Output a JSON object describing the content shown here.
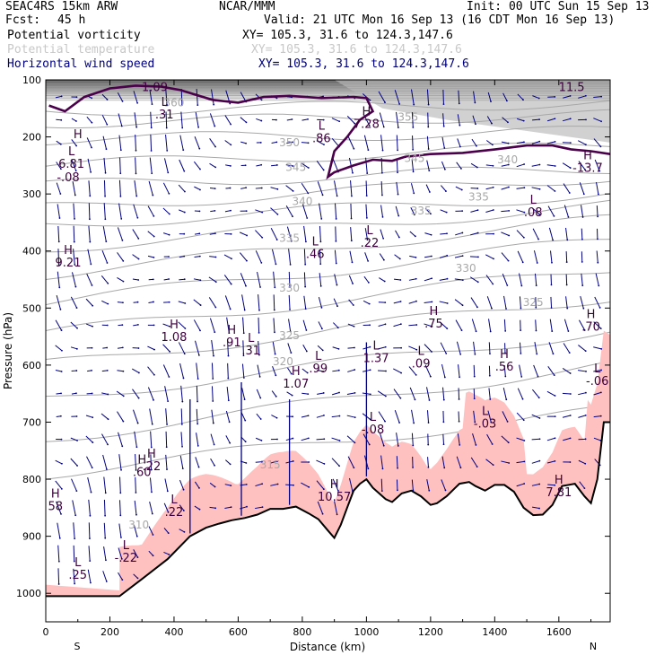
{
  "header": {
    "model": "SEAC4RS 15km ARW",
    "org": "NCAR/MMM",
    "init": "Init: 00 UTC Sun 15 Sep 13",
    "fcst_label": "Fcst:",
    "fcst_value": "45 h",
    "valid": "Valid: 21 UTC Mon 16 Sep 13 (16 CDT Mon 16 Sep 13)",
    "fields": [
      {
        "name": "Potential vorticity",
        "xy": "XY= 105.3, 31.6 to 124.3,147.6",
        "color": "#000000"
      },
      {
        "name": "Potential temperature",
        "xy": "XY= 105.3, 31.6 to 124.3,147.6",
        "color": "#c8c8c8"
      },
      {
        "name": "Horizontal wind speed",
        "xy": "XY= 105.3, 31.6 to 124.3,147.6",
        "color": "#00007f"
      }
    ]
  },
  "chart_data": {
    "type": "cross-section",
    "xlabel": "Distance (km)",
    "ylabel": "Pressure (hPa)",
    "xlim": [
      0,
      1760
    ],
    "ylim": [
      1050,
      100
    ],
    "x_ticks": [
      0,
      200,
      400,
      600,
      800,
      1000,
      1200,
      1400,
      1600
    ],
    "y_ticks": [
      100,
      200,
      300,
      400,
      500,
      600,
      700,
      800,
      900,
      1000
    ],
    "end_labels": {
      "left": "S",
      "right": "N"
    },
    "colors": {
      "pv_fill": "#ffc0c0",
      "theta": "#a8a8a8",
      "wind": "#00007f",
      "pv_2pvu": "#4b004b",
      "label": "#3c003c"
    },
    "terrain": [
      [
        0,
        1005
      ],
      [
        50,
        1005
      ],
      [
        120,
        1005
      ],
      [
        230,
        1005
      ],
      [
        300,
        975
      ],
      [
        380,
        940
      ],
      [
        450,
        900
      ],
      [
        500,
        885
      ],
      [
        540,
        878
      ],
      [
        580,
        872
      ],
      [
        620,
        868
      ],
      [
        660,
        862
      ],
      [
        700,
        852
      ],
      [
        740,
        852
      ],
      [
        780,
        848
      ],
      [
        820,
        860
      ],
      [
        850,
        870
      ],
      [
        880,
        890
      ],
      [
        900,
        903
      ],
      [
        920,
        880
      ],
      [
        940,
        850
      ],
      [
        960,
        820
      ],
      [
        980,
        808
      ],
      [
        1000,
        800
      ],
      [
        1020,
        815
      ],
      [
        1060,
        835
      ],
      [
        1080,
        840
      ],
      [
        1110,
        825
      ],
      [
        1140,
        820
      ],
      [
        1170,
        830
      ],
      [
        1200,
        845
      ],
      [
        1220,
        842
      ],
      [
        1250,
        830
      ],
      [
        1290,
        808
      ],
      [
        1320,
        805
      ],
      [
        1340,
        812
      ],
      [
        1370,
        820
      ],
      [
        1400,
        810
      ],
      [
        1430,
        810
      ],
      [
        1460,
        822
      ],
      [
        1490,
        850
      ],
      [
        1520,
        863
      ],
      [
        1550,
        862
      ],
      [
        1580,
        845
      ],
      [
        1610,
        812
      ],
      [
        1650,
        808
      ],
      [
        1680,
        830
      ],
      [
        1700,
        842
      ],
      [
        1720,
        800
      ],
      [
        1740,
        700
      ],
      [
        1760,
        700
      ]
    ],
    "theta_labels": [
      {
        "v": 360,
        "x": 400,
        "p": 140
      },
      {
        "v": 355,
        "x": 1130,
        "p": 165
      },
      {
        "v": 350,
        "x": 760,
        "p": 210
      },
      {
        "v": 345,
        "x": 780,
        "p": 253
      },
      {
        "v": 345,
        "x": 1150,
        "p": 238
      },
      {
        "v": 340,
        "x": 1440,
        "p": 240
      },
      {
        "v": 340,
        "x": 800,
        "p": 313
      },
      {
        "v": 335,
        "x": 1350,
        "p": 305
      },
      {
        "v": 335,
        "x": 1170,
        "p": 330
      },
      {
        "v": 335,
        "x": 760,
        "p": 378
      },
      {
        "v": 330,
        "x": 1310,
        "p": 430
      },
      {
        "v": 330,
        "x": 760,
        "p": 465
      },
      {
        "v": 325,
        "x": 1520,
        "p": 490
      },
      {
        "v": 325,
        "x": 760,
        "p": 548
      },
      {
        "v": 320,
        "x": 740,
        "p": 594
      },
      {
        "v": 315,
        "x": 700,
        "p": 775
      },
      {
        "v": 310,
        "x": 290,
        "p": 880
      }
    ],
    "extrema_labels": [
      {
        "t": "L",
        "v": "1.09",
        "x": 340,
        "p": 110
      },
      {
        "t": "L",
        "v": ".31",
        "x": 370,
        "p": 158
      },
      {
        "t": "L",
        "v": ".86",
        "x": 860,
        "p": 200
      },
      {
        "t": "H",
        "v": "7.28",
        "x": 1000,
        "p": 175
      },
      {
        "t": "H",
        "v": "11.5",
        "x": 1640,
        "p": 110
      },
      {
        "t": "H",
        "v": "",
        "x": 100,
        "p": 215
      },
      {
        "t": "L",
        "v": "6.81",
        "x": 80,
        "p": 245
      },
      {
        "t": "",
        "v": "-.08",
        "x": 70,
        "p": 268
      },
      {
        "t": "L",
        "v": ".08",
        "x": 1520,
        "p": 330
      },
      {
        "t": "L",
        "v": ".46",
        "x": 840,
        "p": 403
      },
      {
        "t": "L",
        "v": ".22",
        "x": 1010,
        "p": 383
      },
      {
        "t": "H",
        "v": "9.21",
        "x": 70,
        "p": 418
      },
      {
        "t": "H",
        "v": ".75",
        "x": 1210,
        "p": 525
      },
      {
        "t": "H",
        "v": ".70",
        "x": 1700,
        "p": 530
      },
      {
        "t": "H",
        "v": "1.08",
        "x": 400,
        "p": 548
      },
      {
        "t": "H",
        "v": ".91",
        "x": 580,
        "p": 558
      },
      {
        "t": "L",
        "v": ".31",
        "x": 640,
        "p": 572
      },
      {
        "t": "L",
        "v": ".99",
        "x": 850,
        "p": 603
      },
      {
        "t": "H",
        "v": "1.07",
        "x": 780,
        "p": 630
      },
      {
        "t": "L",
        "v": "1.37",
        "x": 1030,
        "p": 585
      },
      {
        "t": "L",
        "v": ".09",
        "x": 1170,
        "p": 595
      },
      {
        "t": "H",
        "v": ".56",
        "x": 1430,
        "p": 600
      },
      {
        "t": "L",
        "v": "-.06",
        "x": 1720,
        "p": 625
      },
      {
        "t": "L",
        "v": "-.03",
        "x": 1370,
        "p": 700
      },
      {
        "t": "L",
        "v": "-.08",
        "x": 1020,
        "p": 710
      },
      {
        "t": "H",
        "v": ".22",
        "x": 330,
        "p": 775
      },
      {
        "t": "H",
        "v": ".60",
        "x": 300,
        "p": 785
      },
      {
        "t": "H",
        "v": "10.57",
        "x": 900,
        "p": 828
      },
      {
        "t": "H",
        "v": "7.81",
        "x": 1600,
        "p": 820
      },
      {
        "t": "L",
        "v": ".22",
        "x": 400,
        "p": 855
      },
      {
        "t": "H",
        "v": "58",
        "x": 30,
        "p": 845
      },
      {
        "t": "L",
        "v": "-.22",
        "x": 250,
        "p": 935
      },
      {
        "t": "L",
        "v": ".25",
        "x": 100,
        "p": 965
      },
      {
        "t": "H",
        "v": "-13.7",
        "x": 1690,
        "p": 252
      }
    ]
  }
}
